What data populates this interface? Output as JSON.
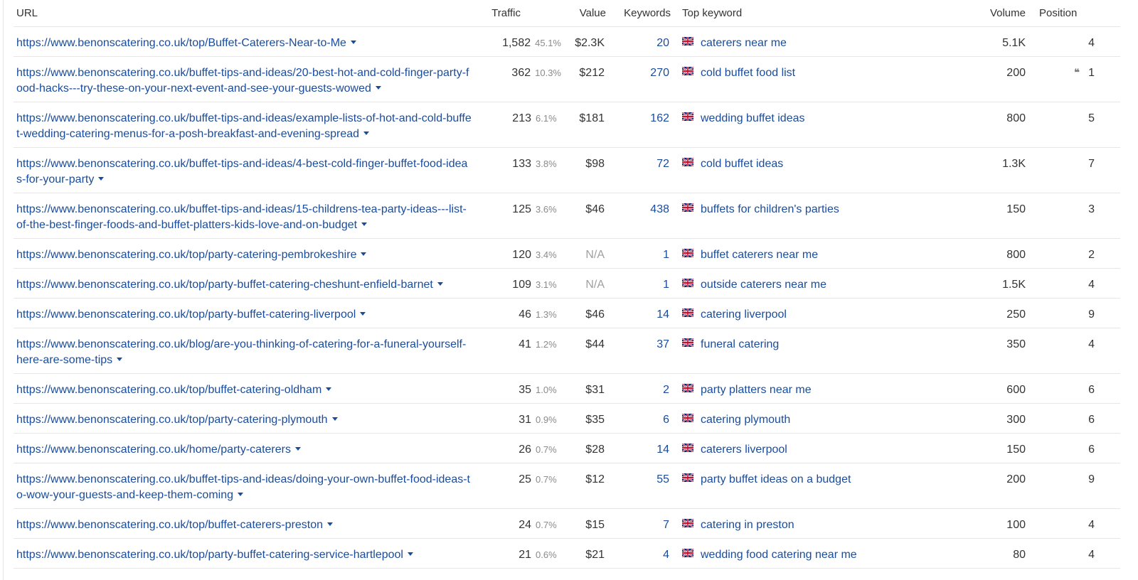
{
  "headers": {
    "url": "URL",
    "traffic": "Traffic",
    "value": "Value",
    "keywords": "Keywords",
    "top_keyword": "Top keyword",
    "volume": "Volume",
    "position": "Position"
  },
  "icons": {
    "flag": "uk-flag-icon",
    "caret": "caret-down-icon",
    "featured": "quote-icon"
  },
  "colors": {
    "link": "#1a4c9c",
    "muted": "#8a8a8a",
    "border": "#e6e6e6"
  },
  "rows": [
    {
      "url": "https://www.benonscatering.co.uk/top/Buffet-Caterers-Near-to-Me",
      "traffic": "1,582",
      "pct": "45.1%",
      "value": "$2.3K",
      "keywords": "20",
      "top_keyword": "caterers near me",
      "volume": "5.1K",
      "position": "4",
      "featured": ""
    },
    {
      "url": "https://www.benonscatering.co.uk/buffet-tips-and-ideas/20-best-hot-and-cold-finger-party-food-hacks---try-these-on-your-next-event-and-see-your-guests-wowed",
      "traffic": "362",
      "pct": "10.3%",
      "value": "$212",
      "keywords": "270",
      "top_keyword": "cold buffet food list",
      "volume": "200",
      "position": "1",
      "featured": "❛❛"
    },
    {
      "url": "https://www.benonscatering.co.uk/buffet-tips-and-ideas/example-lists-of-hot-and-cold-buffet-wedding-catering-menus-for-a-posh-breakfast-and-evening-spread",
      "traffic": "213",
      "pct": "6.1%",
      "value": "$181",
      "keywords": "162",
      "top_keyword": "wedding buffet ideas",
      "volume": "800",
      "position": "5",
      "featured": ""
    },
    {
      "url": "https://www.benonscatering.co.uk/buffet-tips-and-ideas/4-best-cold-finger-buffet-food-ideas-for-your-party",
      "traffic": "133",
      "pct": "3.8%",
      "value": "$98",
      "keywords": "72",
      "top_keyword": "cold buffet ideas",
      "volume": "1.3K",
      "position": "7",
      "featured": ""
    },
    {
      "url": "https://www.benonscatering.co.uk/buffet-tips-and-ideas/15-childrens-tea-party-ideas---list-of-the-best-finger-foods-and-buffet-platters-kids-love-and-on-budget",
      "traffic": "125",
      "pct": "3.6%",
      "value": "$46",
      "keywords": "438",
      "top_keyword": "buffets for children's parties",
      "volume": "150",
      "position": "3",
      "featured": ""
    },
    {
      "url": "https://www.benonscatering.co.uk/top/party-catering-pembrokeshire",
      "traffic": "120",
      "pct": "3.4%",
      "value": "N/A",
      "keywords": "1",
      "top_keyword": "buffet caterers near me",
      "volume": "800",
      "position": "2",
      "featured": ""
    },
    {
      "url": "https://www.benonscatering.co.uk/top/party-buffet-catering-cheshunt-enfield-barnet",
      "traffic": "109",
      "pct": "3.1%",
      "value": "N/A",
      "keywords": "1",
      "top_keyword": "outside caterers near me",
      "volume": "1.5K",
      "position": "4",
      "featured": ""
    },
    {
      "url": "https://www.benonscatering.co.uk/top/party-buffet-catering-liverpool",
      "traffic": "46",
      "pct": "1.3%",
      "value": "$46",
      "keywords": "14",
      "top_keyword": "catering liverpool",
      "volume": "250",
      "position": "9",
      "featured": ""
    },
    {
      "url": "https://www.benonscatering.co.uk/blog/are-you-thinking-of-catering-for-a-funeral-yourself-here-are-some-tips",
      "traffic": "41",
      "pct": "1.2%",
      "value": "$44",
      "keywords": "37",
      "top_keyword": "funeral catering",
      "volume": "350",
      "position": "4",
      "featured": ""
    },
    {
      "url": "https://www.benonscatering.co.uk/top/buffet-catering-oldham",
      "traffic": "35",
      "pct": "1.0%",
      "value": "$31",
      "keywords": "2",
      "top_keyword": "party platters near me",
      "volume": "600",
      "position": "6",
      "featured": ""
    },
    {
      "url": "https://www.benonscatering.co.uk/top/party-catering-plymouth",
      "traffic": "31",
      "pct": "0.9%",
      "value": "$35",
      "keywords": "6",
      "top_keyword": "catering plymouth",
      "volume": "300",
      "position": "6",
      "featured": ""
    },
    {
      "url": "https://www.benonscatering.co.uk/home/party-caterers",
      "traffic": "26",
      "pct": "0.7%",
      "value": "$28",
      "keywords": "14",
      "top_keyword": "caterers liverpool",
      "volume": "150",
      "position": "6",
      "featured": ""
    },
    {
      "url": "https://www.benonscatering.co.uk/buffet-tips-and-ideas/doing-your-own-buffet-food-ideas-to-wow-your-guests-and-keep-them-coming",
      "traffic": "25",
      "pct": "0.7%",
      "value": "$12",
      "keywords": "55",
      "top_keyword": "party buffet ideas on a budget",
      "volume": "200",
      "position": "9",
      "featured": ""
    },
    {
      "url": "https://www.benonscatering.co.uk/top/buffet-caterers-preston",
      "traffic": "24",
      "pct": "0.7%",
      "value": "$15",
      "keywords": "7",
      "top_keyword": "catering in preston",
      "volume": "100",
      "position": "4",
      "featured": ""
    },
    {
      "url": "https://www.benonscatering.co.uk/top/party-buffet-catering-service-hartlepool",
      "traffic": "21",
      "pct": "0.6%",
      "value": "$21",
      "keywords": "4",
      "top_keyword": "wedding food catering near me",
      "volume": "80",
      "position": "4",
      "featured": ""
    }
  ]
}
